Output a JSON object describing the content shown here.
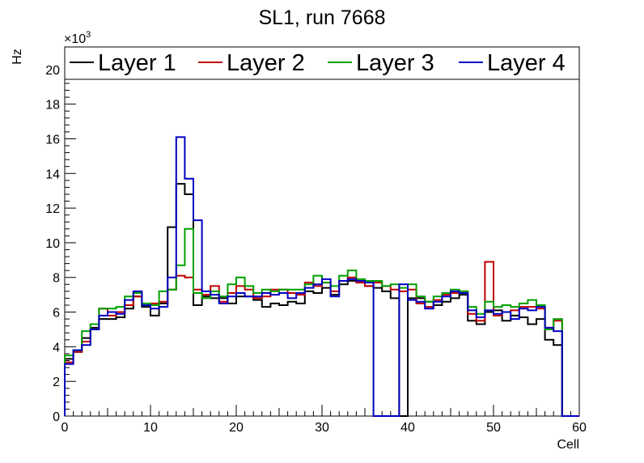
{
  "chart_data": {
    "type": "step-histogram",
    "title": "SL1, run 7668",
    "xlabel": "Cell",
    "ylabel": "Hz",
    "y_exponent_base": "×10",
    "y_exponent": "3",
    "xlim": [
      0,
      60
    ],
    "ylim": [
      0,
      21.3
    ],
    "y_scale": 1000,
    "x_ticks": [
      0,
      10,
      20,
      30,
      40,
      50,
      60
    ],
    "y_ticks": [
      0,
      2,
      4,
      6,
      8,
      10,
      12,
      14,
      16,
      18,
      20
    ],
    "legend_position": "top",
    "series": [
      {
        "name": "Layer 1",
        "color": "#000000",
        "values": [
          3.3,
          3.7,
          4.5,
          5.1,
          5.6,
          5.6,
          5.7,
          6.2,
          6.9,
          6.3,
          5.8,
          6.5,
          10.9,
          13.4,
          12.8,
          6.4,
          6.9,
          6.8,
          6.8,
          6.5,
          6.9,
          6.9,
          6.7,
          6.3,
          6.5,
          6.4,
          6.6,
          6.5,
          7.2,
          7.1,
          7.4,
          7.0,
          7.6,
          7.8,
          7.7,
          7.5,
          7.4,
          7.2,
          6.8,
          0.0,
          6.8,
          6.8,
          6.6,
          6.4,
          6.6,
          6.8,
          7.0,
          5.5,
          5.3,
          6.0,
          6.1,
          5.5,
          5.8,
          5.7,
          5.3,
          5.6,
          4.4,
          4.1,
          0.0,
          0.0
        ]
      },
      {
        "name": "Layer 2",
        "color": "#c00000",
        "values": [
          3.1,
          3.7,
          4.3,
          5.0,
          6.2,
          5.8,
          6.0,
          6.4,
          6.9,
          6.4,
          6.5,
          6.6,
          7.3,
          8.1,
          8.0,
          7.3,
          7.0,
          7.5,
          6.6,
          7.1,
          7.5,
          7.3,
          6.8,
          6.9,
          7.3,
          7.3,
          7.1,
          7.0,
          7.7,
          7.5,
          7.7,
          7.2,
          7.8,
          8.0,
          7.7,
          7.5,
          7.7,
          7.5,
          7.3,
          7.2,
          7.3,
          6.5,
          6.3,
          6.7,
          7.0,
          7.1,
          7.2,
          5.9,
          5.5,
          8.9,
          5.8,
          6.0,
          6.1,
          6.3,
          6.3,
          6.2,
          5.1,
          5.5,
          0.0,
          0.0
        ]
      },
      {
        "name": "Layer 3",
        "color": "#00a000",
        "values": [
          3.5,
          3.8,
          4.9,
          5.3,
          6.2,
          6.2,
          6.3,
          6.9,
          7.1,
          6.5,
          6.4,
          7.2,
          7.3,
          8.7,
          10.8,
          7.1,
          6.8,
          7.2,
          6.9,
          7.6,
          8.0,
          7.5,
          7.1,
          7.3,
          7.2,
          7.3,
          7.3,
          7.3,
          7.6,
          8.1,
          7.7,
          7.5,
          8.1,
          8.4,
          7.9,
          7.8,
          7.8,
          7.5,
          7.6,
          7.4,
          7.6,
          6.9,
          6.6,
          6.9,
          7.1,
          7.3,
          7.2,
          6.3,
          5.9,
          6.6,
          6.3,
          6.4,
          6.3,
          6.5,
          6.7,
          6.4,
          5.0,
          5.6,
          0.0,
          0.0
        ]
      },
      {
        "name": "Layer 4",
        "color": "#0000c0",
        "values": [
          3.0,
          3.8,
          4.1,
          5.0,
          5.8,
          6.0,
          5.9,
          6.7,
          7.2,
          6.4,
          6.2,
          6.3,
          8.0,
          16.1,
          13.7,
          11.3,
          7.2,
          7.0,
          6.5,
          6.9,
          7.1,
          6.9,
          6.9,
          7.1,
          7.0,
          7.1,
          6.8,
          7.1,
          7.4,
          7.6,
          7.9,
          6.9,
          7.8,
          7.9,
          7.8,
          7.7,
          0.0,
          0.0,
          0.0,
          7.6,
          6.7,
          6.6,
          6.2,
          6.6,
          6.9,
          7.2,
          7.1,
          6.1,
          5.7,
          6.1,
          5.9,
          6.0,
          5.6,
          6.2,
          6.1,
          6.3,
          5.1,
          4.9,
          0.0,
          0.0
        ]
      }
    ]
  }
}
